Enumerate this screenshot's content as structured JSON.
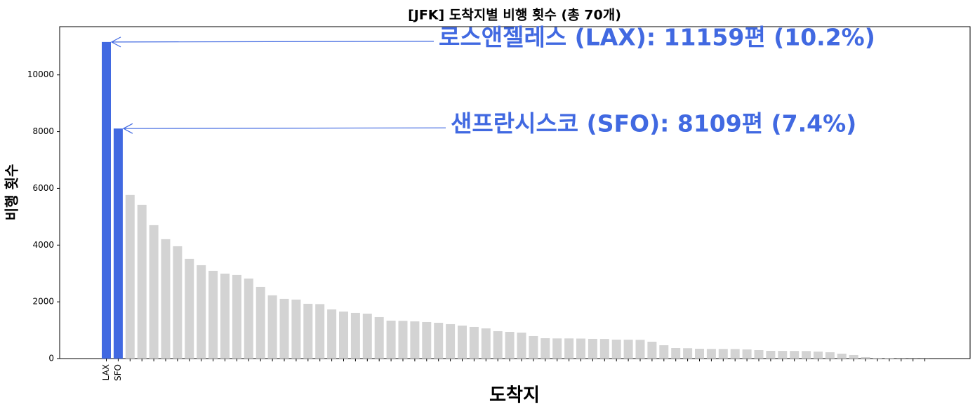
{
  "chart_data": {
    "type": "bar",
    "title": "[JFK] 도착지별 비행 횟수 (총 70개)",
    "xlabel": "도착지",
    "ylabel": "비행 횟수",
    "categories": [
      "LAX",
      "SFO",
      null,
      null,
      null,
      null,
      null,
      null,
      null,
      null,
      null,
      null,
      null,
      null,
      null,
      null,
      null,
      null,
      null,
      null,
      null,
      null,
      null,
      null,
      null,
      null,
      null,
      null,
      null,
      null,
      null,
      null,
      null,
      null,
      null,
      null,
      null,
      null,
      null,
      null,
      null,
      null,
      null,
      null,
      null,
      null,
      null,
      null,
      null,
      null,
      null,
      null,
      null,
      null,
      null,
      null,
      null,
      null,
      null,
      null,
      null,
      null,
      null,
      null,
      null,
      null,
      null,
      null,
      null,
      null
    ],
    "values": [
      11159,
      8109,
      5767,
      5420,
      4703,
      4208,
      3960,
      3515,
      3292,
      3094,
      2995,
      2946,
      2822,
      2525,
      2228,
      2104,
      2079,
      1931,
      1920,
      1733,
      1658,
      1609,
      1584,
      1460,
      1337,
      1330,
      1312,
      1287,
      1262,
      1213,
      1163,
      1114,
      1064,
      965,
      940,
      916,
      792,
      718,
      710,
      710,
      705,
      693,
      690,
      668,
      665,
      660,
      594,
      470,
      371,
      365,
      346,
      340,
      338,
      335,
      322,
      297,
      272,
      270,
      268,
      265,
      247,
      223,
      173,
      124,
      50,
      25,
      10,
      5,
      3,
      2
    ],
    "colors": [
      "#4169e1",
      "#4169e1",
      "#d3d3d3",
      "#d3d3d3",
      "#d3d3d3",
      "#d3d3d3",
      "#d3d3d3",
      "#d3d3d3",
      "#d3d3d3",
      "#d3d3d3",
      "#d3d3d3",
      "#d3d3d3",
      "#d3d3d3",
      "#d3d3d3",
      "#d3d3d3",
      "#d3d3d3",
      "#d3d3d3",
      "#d3d3d3",
      "#d3d3d3",
      "#d3d3d3",
      "#d3d3d3",
      "#d3d3d3",
      "#d3d3d3",
      "#d3d3d3",
      "#d3d3d3",
      "#d3d3d3",
      "#d3d3d3",
      "#d3d3d3",
      "#d3d3d3",
      "#d3d3d3",
      "#d3d3d3",
      "#d3d3d3",
      "#d3d3d3",
      "#d3d3d3",
      "#d3d3d3",
      "#d3d3d3",
      "#d3d3d3",
      "#d3d3d3",
      "#d3d3d3",
      "#d3d3d3",
      "#d3d3d3",
      "#d3d3d3",
      "#d3d3d3",
      "#d3d3d3",
      "#d3d3d3",
      "#d3d3d3",
      "#d3d3d3",
      "#d3d3d3",
      "#d3d3d3",
      "#d3d3d3",
      "#d3d3d3",
      "#d3d3d3",
      "#d3d3d3",
      "#d3d3d3",
      "#d3d3d3",
      "#d3d3d3",
      "#d3d3d3",
      "#d3d3d3",
      "#d3d3d3",
      "#d3d3d3",
      "#d3d3d3",
      "#d3d3d3",
      "#d3d3d3",
      "#d3d3d3",
      "#d3d3d3",
      "#d3d3d3",
      "#d3d3d3",
      "#d3d3d3",
      "#d3d3d3",
      "#d3d3d3"
    ],
    "annotations": [
      {
        "text": "로스앤젤레스 (LAX): 11159편 (10.2%)"
      },
      {
        "text": "샌프란시스코 (SFO): 8109편 (7.4%)"
      }
    ],
    "annotation_color": "#4169e1",
    "ylim": [
      0,
      11700
    ],
    "yticks": [
      0,
      2000,
      4000,
      6000,
      8000,
      10000
    ],
    "grid": false
  }
}
